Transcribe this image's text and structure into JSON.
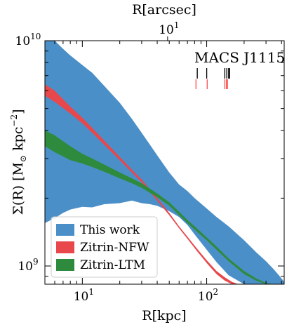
{
  "chart_data": {
    "type": "line",
    "xlabel": "R[kpc]",
    "x2label": "R[arcsec]",
    "x2_ticks": [
      {
        "label": "10",
        "exp": "1",
        "kpc": 48.5
      }
    ],
    "x_ticks": [
      {
        "label": "10",
        "exp": "1",
        "value": 10
      },
      {
        "label": "10",
        "exp": "2",
        "value": 100
      }
    ],
    "ylabel": "Σ(R) [M☉ kpc⁻²]",
    "ylabel_parts": {
      "main": "Σ(R) [M",
      "sub": "⊙",
      "mid": " kpc",
      "sup": "−2",
      "end": "]"
    },
    "y_ticks": [
      {
        "label": "10",
        "exp": "9",
        "value": 1000000000.0
      },
      {
        "label": "10",
        "exp": "10",
        "value": 10000000000.0
      }
    ],
    "xscale": "log",
    "yscale": "log",
    "xlim": [
      5,
      420
    ],
    "ylim": [
      830000000.0,
      10000000000.0
    ],
    "annotation": "MACS J1115",
    "legend_position": "lower-left",
    "series": [
      {
        "name": "This work",
        "color": "#4b8fc8",
        "kind": "band",
        "x": [
          5,
          6,
          7,
          8,
          10,
          12,
          15,
          20,
          25,
          30,
          35,
          40,
          50,
          60,
          70,
          80,
          100,
          120,
          150,
          200,
          250,
          300,
          350,
          400,
          420
        ],
        "lower": [
          1550000000.0,
          1630000000.0,
          1720000000.0,
          1780000000.0,
          1830000000.0,
          1820000000.0,
          1880000000.0,
          1900000000.0,
          1950000000.0,
          1900000000.0,
          1880000000.0,
          1850000000.0,
          1750000000.0,
          1650000000.0,
          1520000000.0,
          1380000000.0,
          1180000000.0,
          1040000000.0,
          910000000.0,
          830000000.0,
          830000000.0,
          830000000.0,
          830000000.0,
          830000000.0,
          830000000.0
        ],
        "upper": [
          11000000000.0,
          10000000000.0,
          9200000000.0,
          8600000000.0,
          7800000000.0,
          7200000000.0,
          6300000000.0,
          5300000000.0,
          4500000000.0,
          3900000000.0,
          3450000000.0,
          3100000000.0,
          2600000000.0,
          2300000000.0,
          2150000000.0,
          2000000000.0,
          1800000000.0,
          1650000000.0,
          1500000000.0,
          1300000000.0,
          1150000000.0,
          1050000000.0,
          960000000.0,
          880000000.0,
          850000000.0
        ]
      },
      {
        "name": "Zitrin-NFW",
        "color": "#e8474c",
        "kind": "band",
        "x": [
          5,
          6,
          8,
          10,
          12,
          15,
          20,
          25,
          30,
          40,
          50,
          60,
          70,
          80,
          100,
          120,
          140,
          160,
          180
        ],
        "lower": [
          5700000000.0,
          5350000000.0,
          4750000000.0,
          4300000000.0,
          3900000000.0,
          3450000000.0,
          2950000000.0,
          2600000000.0,
          2350000000.0,
          1950000000.0,
          1680000000.0,
          1470000000.0,
          1320000000.0,
          1200000000.0,
          1030000000.0,
          920000000.0,
          860000000.0,
          830000000.0,
          830000000.0
        ],
        "upper": [
          6400000000.0,
          6000000000.0,
          5100000000.0,
          4550000000.0,
          4100000000.0,
          3600000000.0,
          3050000000.0,
          2680000000.0,
          2420000000.0,
          2000000000.0,
          1720000000.0,
          1500000000.0,
          1350000000.0,
          1230000000.0,
          1060000000.0,
          950000000.0,
          890000000.0,
          850000000.0,
          830000000.0
        ]
      },
      {
        "name": "Zitrin-LTM",
        "color": "#2e8b3e",
        "kind": "band",
        "x": [
          5,
          6,
          8,
          10,
          12,
          15,
          20,
          25,
          30,
          40,
          50,
          60,
          70,
          80,
          100,
          120,
          150,
          200,
          250,
          300,
          350
        ],
        "lower": [
          3400000000.0,
          3200000000.0,
          2950000000.0,
          2850000000.0,
          2750000000.0,
          2620000000.0,
          2450000000.0,
          2330000000.0,
          2220000000.0,
          2020000000.0,
          1850000000.0,
          1680000000.0,
          1550000000.0,
          1450000000.0,
          1300000000.0,
          1180000000.0,
          1050000000.0,
          920000000.0,
          860000000.0,
          830000000.0,
          830000000.0
        ],
        "upper": [
          4000000000.0,
          3800000000.0,
          3400000000.0,
          3150000000.0,
          3000000000.0,
          2820000000.0,
          2600000000.0,
          2450000000.0,
          2330000000.0,
          2100000000.0,
          1920000000.0,
          1740000000.0,
          1600000000.0,
          1500000000.0,
          1340000000.0,
          1220000000.0,
          1080000000.0,
          950000000.0,
          880000000.0,
          840000000.0,
          830000000.0
        ]
      }
    ],
    "marker_lines": [
      {
        "color": "#000000",
        "x": [
          84,
          100,
          140,
          145,
          150,
          153
        ]
      },
      {
        "color": "#ff5050",
        "x": [
          82,
          101,
          140,
          144,
          147
        ]
      }
    ]
  }
}
